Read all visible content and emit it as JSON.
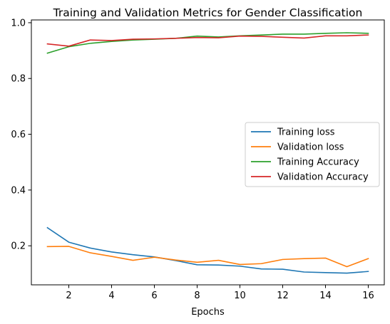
{
  "chart_data": {
    "type": "line",
    "title": "Training and Validation Metrics for Gender Classification",
    "xlabel": "Epochs",
    "ylabel": "",
    "x": [
      1,
      2,
      3,
      4,
      5,
      6,
      7,
      8,
      9,
      10,
      11,
      12,
      13,
      14,
      15,
      16
    ],
    "xlim": [
      0.25,
      16.75
    ],
    "ylim": [
      0.06,
      1.01
    ],
    "xticks": [
      2,
      4,
      6,
      8,
      10,
      12,
      14,
      16
    ],
    "xtick_labels": [
      "2",
      "4",
      "6",
      "8",
      "10",
      "12",
      "14",
      "16"
    ],
    "yticks": [
      0.2,
      0.4,
      0.6,
      0.8,
      1.0
    ],
    "ytick_labels": [
      "0.2",
      "0.4",
      "0.6",
      "0.8",
      "1.0"
    ],
    "grid": false,
    "legend_position": "center-right",
    "series": [
      {
        "name": "Training loss",
        "color": "#1f77b4",
        "values": [
          0.265,
          0.213,
          0.192,
          0.178,
          0.168,
          0.16,
          0.147,
          0.132,
          0.131,
          0.127,
          0.117,
          0.116,
          0.106,
          0.104,
          0.102,
          0.108
        ]
      },
      {
        "name": "Validation loss",
        "color": "#ff7f0e",
        "values": [
          0.197,
          0.198,
          0.175,
          0.162,
          0.148,
          0.159,
          0.149,
          0.141,
          0.148,
          0.133,
          0.136,
          0.151,
          0.154,
          0.156,
          0.125,
          0.154
        ]
      },
      {
        "name": "Training Accuracy",
        "color": "#2ca02c",
        "values": [
          0.891,
          0.914,
          0.926,
          0.933,
          0.938,
          0.941,
          0.944,
          0.952,
          0.949,
          0.953,
          0.956,
          0.959,
          0.959,
          0.962,
          0.964,
          0.962
        ]
      },
      {
        "name": "Validation Accuracy",
        "color": "#d62728",
        "values": [
          0.924,
          0.916,
          0.938,
          0.936,
          0.941,
          0.942,
          0.944,
          0.947,
          0.946,
          0.952,
          0.951,
          0.948,
          0.945,
          0.953,
          0.953,
          0.956
        ]
      }
    ]
  }
}
